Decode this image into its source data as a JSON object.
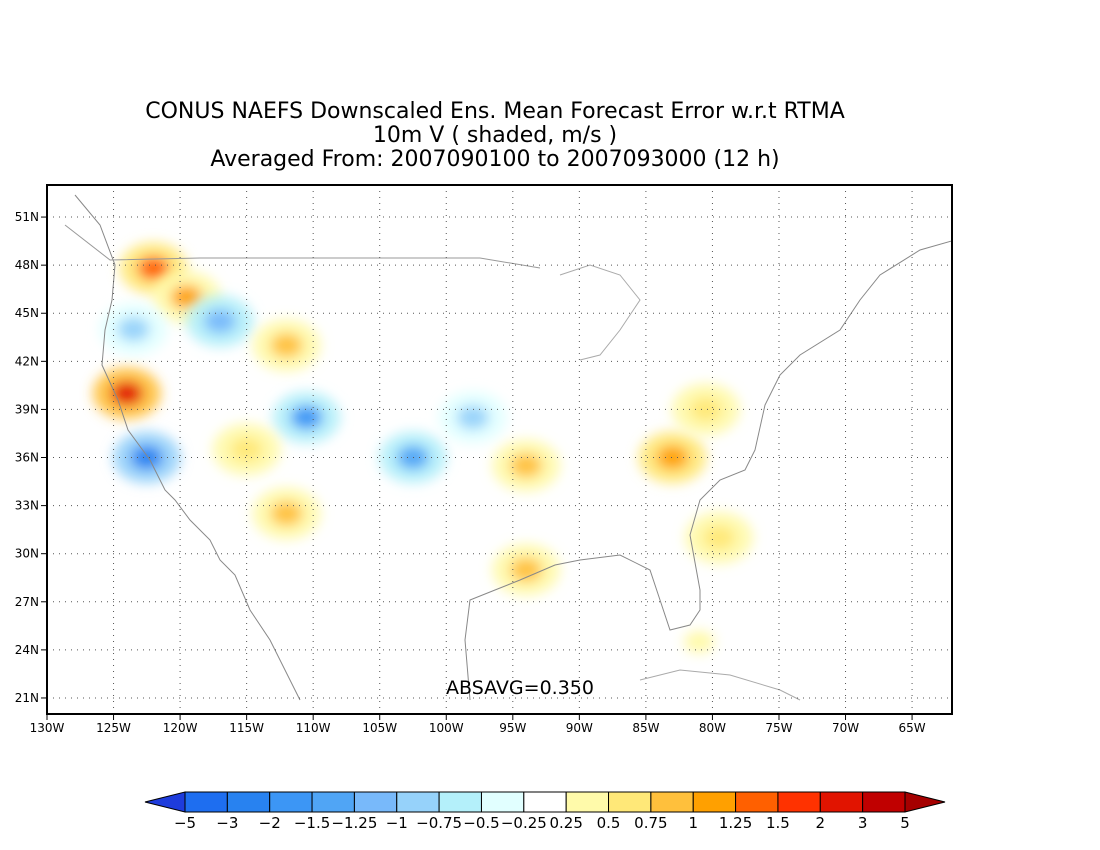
{
  "title": {
    "line1": "CONUS NAEFS Downscaled Ens. Mean Forecast Error w.r.t RTMA",
    "line2": "10m V ( shaded, m/s )",
    "line3": "Averaged From: 2007090100 to 2007093000 (12 h)"
  },
  "map": {
    "projection": "lat-lon",
    "lon_range": [
      -130,
      -62
    ],
    "lat_range": [
      20,
      53
    ],
    "gridlines": "dotted",
    "lat_labels": [
      "51N",
      "48N",
      "45N",
      "42N",
      "39N",
      "36N",
      "33N",
      "30N",
      "27N",
      "24N",
      "21N"
    ],
    "lat_values": [
      51,
      48,
      45,
      42,
      39,
      36,
      33,
      30,
      27,
      24,
      21
    ],
    "lon_labels": [
      "130W",
      "125W",
      "120W",
      "115W",
      "110W",
      "105W",
      "100W",
      "95W",
      "90W",
      "85W",
      "80W",
      "75W",
      "70W",
      "65W"
    ],
    "lon_values": [
      -130,
      -125,
      -120,
      -115,
      -110,
      -105,
      -100,
      -95,
      -90,
      -85,
      -80,
      -75,
      -70,
      -65
    ],
    "annotation": "ABSAVG=0.350",
    "blobs": [
      {
        "lon": -122,
        "lat": 47.8,
        "value": 1.5
      },
      {
        "lon": -119.5,
        "lat": 46,
        "value": 1.1
      },
      {
        "lon": -124,
        "lat": 40,
        "value": 2.2
      },
      {
        "lon": -122.5,
        "lat": 36,
        "value": -2
      },
      {
        "lon": -123.5,
        "lat": 44,
        "value": -0.8
      },
      {
        "lon": -117,
        "lat": 44.5,
        "value": -1.2
      },
      {
        "lon": -112,
        "lat": 43,
        "value": 1
      },
      {
        "lon": -110.5,
        "lat": 38.5,
        "value": -1.5
      },
      {
        "lon": -115,
        "lat": 36.5,
        "value": 0.7
      },
      {
        "lon": -112,
        "lat": 32.5,
        "value": 0.9
      },
      {
        "lon": -102.5,
        "lat": 36,
        "value": -1.4
      },
      {
        "lon": -98,
        "lat": 38.5,
        "value": -0.9
      },
      {
        "lon": -94,
        "lat": 35.5,
        "value": 0.9
      },
      {
        "lon": -94,
        "lat": 29,
        "value": 0.8
      },
      {
        "lon": -83,
        "lat": 36,
        "value": 1.2
      },
      {
        "lon": -80.5,
        "lat": 39,
        "value": 0.6
      },
      {
        "lon": -79.5,
        "lat": 31,
        "value": 0.6
      },
      {
        "lon": -81,
        "lat": 24.5,
        "value": 0.4
      }
    ]
  },
  "colorbar": {
    "labels": [
      "-5",
      "-3",
      "-2",
      "-1.5",
      "-1.25",
      "-1",
      "-0.75",
      "-0.5",
      "-0.25",
      "0.25",
      "0.5",
      "0.75",
      "1",
      "1.25",
      "1.5",
      "2",
      "3",
      "5"
    ],
    "colors": [
      "#1e3cdc",
      "#1e6ef0",
      "#2882f0",
      "#3c96f5",
      "#50a5f5",
      "#78b9fa",
      "#96d2fa",
      "#b4f0fa",
      "#e1ffff",
      "#ffffff",
      "#fffaaa",
      "#ffe878",
      "#ffc03c",
      "#ffa000",
      "#ff6000",
      "#ff3200",
      "#e11400",
      "#c00000",
      "#a50000"
    ]
  }
}
